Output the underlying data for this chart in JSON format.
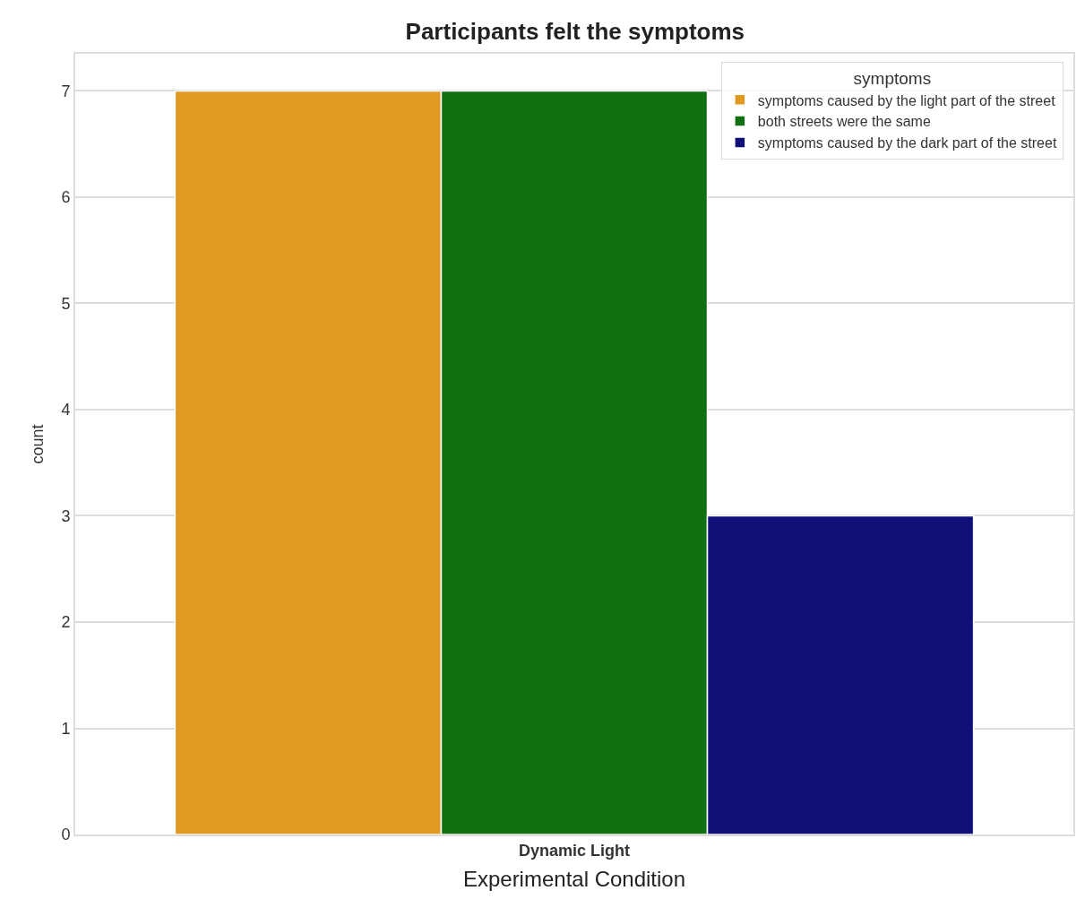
{
  "chart_data": {
    "type": "bar",
    "title": "Participants felt the symptoms",
    "xlabel": "Experimental Condition",
    "ylabel": "count",
    "legend_title": "symptoms",
    "categories": [
      "Dynamic Light"
    ],
    "series": [
      {
        "name": "symptoms caused by the light part of the street",
        "color": "#e09a22",
        "values": [
          7
        ]
      },
      {
        "name": "both streets were the same",
        "color": "#117011",
        "values": [
          7
        ]
      },
      {
        "name": "symptoms caused by the dark part of the street",
        "color": "#101078",
        "values": [
          3
        ]
      }
    ],
    "ylim": [
      0,
      7.35
    ],
    "yticks": [
      0,
      1,
      2,
      3,
      4,
      5,
      6,
      7
    ],
    "grid": "y",
    "legend": "top right"
  }
}
